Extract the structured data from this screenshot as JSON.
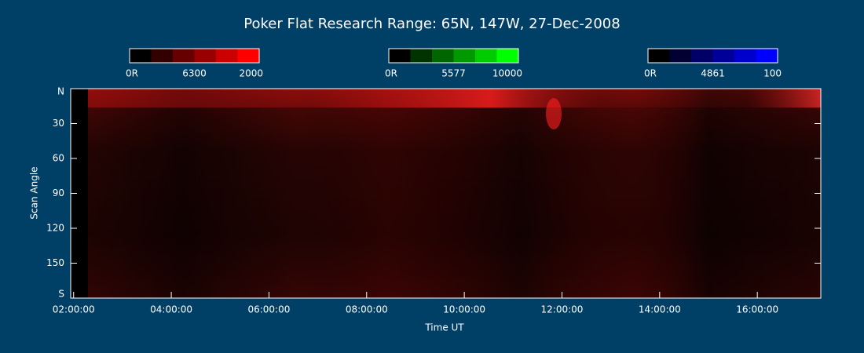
{
  "chart_data": {
    "type": "keogram",
    "title": "Poker Flat Research Range: 65N, 147W, 27-Dec-2008",
    "xlabel": "Time UT",
    "ylabel": "Scan Angle",
    "xlim": [
      1.94,
      17.3
    ],
    "xticks": [
      {
        "value": 2,
        "label": "02:00:00"
      },
      {
        "value": 4,
        "label": "04:00:00"
      },
      {
        "value": 6,
        "label": "06:00:00"
      },
      {
        "value": 8,
        "label": "08:00:00"
      },
      {
        "value": 10,
        "label": "10:00:00"
      },
      {
        "value": 12,
        "label": "12:00:00"
      },
      {
        "value": 14,
        "label": "14:00:00"
      },
      {
        "value": 16,
        "label": "16:00:00"
      }
    ],
    "ylim": [
      0,
      180
    ],
    "yticks": [
      {
        "value": 0,
        "label": "N"
      },
      30,
      60,
      90,
      120,
      150,
      {
        "value": 180,
        "label": "S"
      }
    ],
    "colorbars": [
      {
        "labels": [
          "0R",
          "6300",
          "2000"
        ],
        "color": "#ff0000"
      },
      {
        "labels": [
          "0R",
          "5577",
          "10000"
        ],
        "color": "#00ff00"
      },
      {
        "labels": [
          "0R",
          "4861",
          "100"
        ],
        "color": "#0000ff"
      }
    ]
  }
}
